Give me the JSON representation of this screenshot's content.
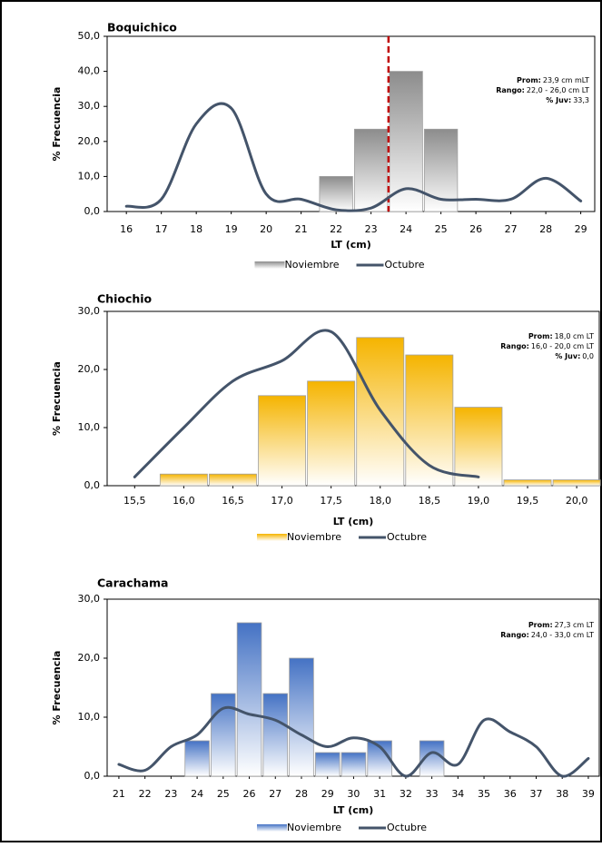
{
  "chart_data": [
    {
      "type": "combo",
      "title": "Boquichico",
      "xlabel": "LT (cm)",
      "ylabel": "% Frecuencia",
      "x": [
        16,
        17,
        18,
        19,
        20,
        21,
        22,
        23,
        24,
        25,
        26,
        27,
        28,
        29
      ],
      "series": [
        {
          "name": "Noviembre",
          "type": "bar",
          "color": "#8c8c8c",
          "values": [
            0,
            0,
            0,
            0,
            0,
            0,
            10,
            23.5,
            40,
            23.5,
            0,
            0,
            0,
            0
          ]
        },
        {
          "name": "Octubre",
          "type": "line",
          "color": "#44546a",
          "values": [
            1.5,
            3.5,
            25,
            29.5,
            5,
            3.5,
            0.5,
            1,
            6.5,
            3.5,
            3.5,
            3.5,
            9.5,
            3
          ]
        }
      ],
      "xlim": [
        15.45,
        29.4
      ],
      "ylim": [
        0,
        50
      ],
      "xticks": [
        16,
        17,
        18,
        19,
        20,
        21,
        22,
        23,
        24,
        25,
        26,
        27,
        28,
        29
      ],
      "yticks": [
        {
          "value": 0,
          "label": "0,0"
        },
        {
          "value": 10,
          "label": "10,0"
        },
        {
          "value": 20,
          "label": "20,0"
        },
        {
          "value": 30,
          "label": "30,0"
        },
        {
          "value": 40,
          "label": "40,0"
        },
        {
          "value": 50,
          "label": "50,0"
        }
      ],
      "vline": 23.5,
      "vline_color": "#c00000",
      "annotation": [
        {
          "label": "Prom:",
          "text": "23,9 cm mLT"
        },
        {
          "label": "Rango:",
          "text": "22,0 - 26,0 cm LT"
        },
        {
          "label": "% Juv:",
          "text": "33,3"
        }
      ]
    },
    {
      "type": "combo",
      "title": "Chiochio",
      "xlabel": "LT (cm)",
      "ylabel": "% Frecuencia",
      "x": [
        15.5,
        16.0,
        16.5,
        17.0,
        17.5,
        18.0,
        18.5,
        19.0,
        19.5,
        20.0
      ],
      "series": [
        {
          "name": "Noviembre",
          "type": "bar",
          "color": "#f5b400",
          "values": [
            0,
            2,
            2,
            15.5,
            18,
            25.5,
            22.5,
            13.5,
            1,
            1
          ]
        },
        {
          "name": "Octubre",
          "type": "line",
          "color": "#44546a",
          "values": [
            1.5,
            10,
            18,
            21.5,
            26.5,
            13,
            3.5,
            1.5,
            null,
            null
          ]
        }
      ],
      "xlim": [
        15.22,
        20.23
      ],
      "ylim": [
        0,
        30
      ],
      "xticks": [
        {
          "value": 15.5,
          "label": "15,5"
        },
        {
          "value": 16,
          "label": "16,0"
        },
        {
          "value": 16.5,
          "label": "16,5"
        },
        {
          "value": 17,
          "label": "17,0"
        },
        {
          "value": 17.5,
          "label": "17,5"
        },
        {
          "value": 18,
          "label": "18,0"
        },
        {
          "value": 18.5,
          "label": "18,5"
        },
        {
          "value": 19,
          "label": "19,0"
        },
        {
          "value": 19.5,
          "label": "19,5"
        },
        {
          "value": 20,
          "label": "20,0"
        }
      ],
      "yticks": [
        {
          "value": 0,
          "label": "0,0"
        },
        {
          "value": 10,
          "label": "10,0"
        },
        {
          "value": 20,
          "label": "20,0"
        },
        {
          "value": 30,
          "label": "30,0"
        }
      ],
      "annotation": [
        {
          "label": "Prom:",
          "text": "18,0 cm LT"
        },
        {
          "label": "Rango:",
          "text": "16,0 - 20,0 cm LT"
        },
        {
          "label": "% Juv:",
          "text": "0,0"
        }
      ]
    },
    {
      "type": "combo",
      "title": "Carachama",
      "xlabel": "LT (cm)",
      "ylabel": "% Frecuencia",
      "x": [
        21,
        22,
        23,
        24,
        25,
        26,
        27,
        28,
        29,
        30,
        31,
        32,
        33,
        34,
        35,
        36,
        37,
        38,
        39
      ],
      "series": [
        {
          "name": "Noviembre",
          "type": "bar",
          "color": "#4472c4",
          "values": [
            0,
            0,
            0,
            6,
            14,
            26,
            14,
            20,
            4,
            4,
            6,
            0,
            6,
            0,
            0,
            0,
            0,
            0,
            0
          ]
        },
        {
          "name": "Octubre",
          "type": "line",
          "color": "#44546a",
          "values": [
            2,
            1,
            5,
            7,
            11.5,
            10.5,
            9.5,
            7,
            5,
            6.5,
            5,
            0,
            4,
            2,
            9.5,
            7.5,
            5,
            0,
            3
          ]
        }
      ],
      "xlim": [
        20.55,
        39.42
      ],
      "ylim": [
        0,
        30
      ],
      "xticks": [
        21,
        22,
        23,
        24,
        25,
        26,
        27,
        28,
        29,
        30,
        31,
        32,
        33,
        34,
        35,
        36,
        37,
        38,
        39
      ],
      "yticks": [
        {
          "value": 0,
          "label": "0,0"
        },
        {
          "value": 10,
          "label": "10,0"
        },
        {
          "value": 20,
          "label": "20,0"
        },
        {
          "value": 30,
          "label": "30,0"
        }
      ],
      "annotation": [
        {
          "label": "Prom:",
          "text": "27,3 cm LT"
        },
        {
          "label": "Rango:",
          "text": "24,0 - 33,0 cm LT"
        }
      ]
    }
  ]
}
